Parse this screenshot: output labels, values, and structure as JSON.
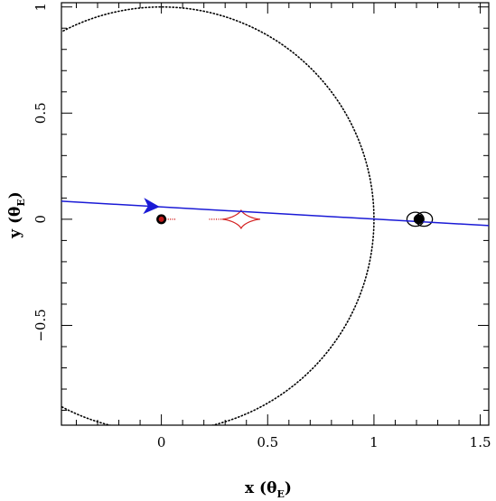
{
  "chart_data": {
    "type": "scatter",
    "xlabel": "x (θ",
    "xlabel_sub": "E",
    "xlabel_close": ")",
    "ylabel": "y (θ",
    "ylabel_sub": "E",
    "ylabel_close": ")",
    "xlim": [
      -0.47,
      1.54
    ],
    "ylim": [
      -0.97,
      1.02
    ],
    "x_ticks": [
      {
        "value": 0,
        "label": "0"
      },
      {
        "value": 0.5,
        "label": "0.5"
      },
      {
        "value": 1,
        "label": "1"
      },
      {
        "value": 1.5,
        "label": "1.5"
      }
    ],
    "y_ticks": [
      {
        "value": -0.5,
        "label": "−0.5"
      },
      {
        "value": 0,
        "label": "0"
      },
      {
        "value": 0.5,
        "label": "0.5"
      },
      {
        "value": 1,
        "label": "1"
      }
    ],
    "colors": {
      "trajectory": "#1a1ad6",
      "caustic": "#d42020",
      "critical_curve": "#000000",
      "lens": "#000000",
      "lens_fill_primary": "#c01818"
    },
    "series": [
      {
        "kind": "source_trajectory_line",
        "points": [
          [
            -0.47,
            0.085
          ],
          [
            1.54,
            -0.03
          ]
        ],
        "arrow_at_x": -0.05
      },
      {
        "kind": "lens_masses",
        "points": [
          [
            0.0,
            0.0
          ],
          [
            1.21,
            0.0
          ]
        ]
      },
      {
        "kind": "critical_curve_large",
        "center": [
          0.0,
          0.0
        ],
        "radius": 1.0,
        "style": "dotted"
      },
      {
        "kind": "critical_curve_small",
        "centers": [
          [
            1.195,
            0.0
          ],
          [
            1.235,
            0.0
          ]
        ],
        "rx": 0.04,
        "ry": 0.033
      },
      {
        "kind": "caustic_central",
        "center": [
          0.375,
          0.0
        ],
        "half_width": 0.09,
        "half_height": 0.045
      },
      {
        "kind": "caustic_near_lens",
        "points": [
          [
            0.01,
            0.0
          ],
          [
            0.07,
            0.0
          ]
        ]
      }
    ]
  }
}
